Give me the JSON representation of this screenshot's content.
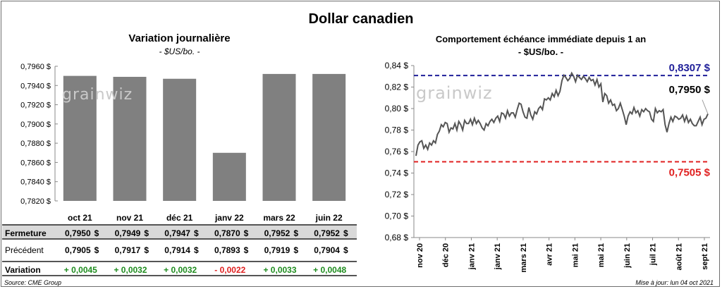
{
  "header": {
    "title": "Dollar canadien"
  },
  "chart_data": [
    {
      "type": "bar",
      "title": "Variation  journalière",
      "subtitle": "- $US/bo. -",
      "categories": [
        "oct 21",
        "nov 21",
        "déc 21",
        "janv 22",
        "mars 22",
        "juin 22"
      ],
      "values": [
        0.795,
        0.7949,
        0.7947,
        0.787,
        0.7952,
        0.7952
      ],
      "ylim": [
        0.782,
        0.796
      ],
      "yticks": [
        "0,7820 $",
        "0,7840 $",
        "0,7860 $",
        "0,7880 $",
        "0,7900 $",
        "0,7920 $",
        "0,7940 $",
        "0,7960 $"
      ],
      "bar_color": "#808080"
    },
    {
      "type": "line",
      "title": "Comportement échéance immédiate depuis 1 an",
      "subtitle": "- $US/bo. -",
      "ylim": [
        0.68,
        0.84
      ],
      "yticks": [
        "0,68 $",
        "0,70 $",
        "0,72 $",
        "0,74 $",
        "0,76 $",
        "0,78 $",
        "0,80 $",
        "0,82 $",
        "0,84 $"
      ],
      "xticks": [
        "nov 20",
        "déc 20",
        "janv 21",
        "janv 21",
        "mars 21",
        "avr 21",
        "mai 21",
        "mai 21",
        "juin 21",
        "juil 21",
        "août 21",
        "sept 21"
      ],
      "series": [
        {
          "color": "#555555",
          "values": [
            0.756,
            0.766,
            0.769,
            0.77,
            0.763,
            0.766,
            0.762,
            0.768,
            0.766,
            0.77,
            0.768,
            0.776,
            0.779,
            0.785,
            0.783,
            0.787,
            0.786,
            0.778,
            0.782,
            0.781,
            0.786,
            0.78,
            0.788,
            0.785,
            0.78,
            0.789,
            0.786,
            0.786,
            0.79,
            0.785,
            0.791,
            0.786,
            0.789,
            0.786,
            0.782,
            0.78,
            0.786,
            0.784,
            0.788,
            0.79,
            0.787,
            0.791,
            0.793,
            0.788,
            0.796,
            0.795,
            0.791,
            0.798,
            0.793,
            0.796,
            0.796,
            0.792,
            0.799,
            0.805,
            0.804,
            0.797,
            0.792,
            0.791,
            0.801,
            0.794,
            0.79,
            0.797,
            0.795,
            0.8,
            0.802,
            0.799,
            0.809,
            0.808,
            0.81,
            0.808,
            0.814,
            0.811,
            0.817,
            0.812,
            0.816,
            0.826,
            0.831,
            0.829,
            0.826,
            0.828,
            0.833,
            0.83,
            0.825,
            0.831,
            0.829,
            0.827,
            0.83,
            0.828,
            0.825,
            0.829,
            0.826,
            0.827,
            0.822,
            0.827,
            0.82,
            0.823,
            0.806,
            0.814,
            0.812,
            0.805,
            0.808,
            0.803,
            0.804,
            0.798,
            0.8,
            0.805,
            0.799,
            0.793,
            0.785,
            0.793,
            0.797,
            0.795,
            0.801,
            0.796,
            0.798,
            0.793,
            0.799,
            0.797,
            0.8,
            0.798,
            0.797,
            0.79,
            0.788,
            0.8,
            0.796,
            0.798,
            0.797,
            0.799,
            0.785,
            0.778,
            0.786,
            0.792,
            0.788,
            0.793,
            0.792,
            0.79,
            0.791,
            0.794,
            0.788,
            0.793,
            0.787,
            0.79,
            0.786,
            0.784,
            0.784,
            0.788,
            0.792,
            0.785,
            0.79,
            0.791,
            0.795
          ]
        }
      ],
      "ref_lines": [
        {
          "value": 0.8307,
          "label": "0,8307 $",
          "color": "#1f1f99"
        },
        {
          "value": 0.7505,
          "label": "0,7505 $",
          "color": "#e02020"
        }
      ],
      "last_label": "0,7950 $"
    }
  ],
  "table": {
    "rows": [
      {
        "label": "Fermeture",
        "values": [
          "0,7950",
          "0,7949",
          "0,7947",
          "0,7870",
          "0,7952",
          "0,7952"
        ],
        "dollar": "$"
      },
      {
        "label": "Précédent",
        "values": [
          "0,7905",
          "0,7917",
          "0,7914",
          "0,7893",
          "0,7919",
          "0,7904"
        ],
        "dollar": "$"
      },
      {
        "label": "Variation",
        "values": [
          "+ 0,0045",
          "+ 0,0032",
          "+ 0,0032",
          "- 0,0022",
          "+ 0,0033",
          "+ 0,0048"
        ],
        "signs": [
          "pos",
          "pos",
          "pos",
          "neg",
          "pos",
          "pos"
        ]
      }
    ],
    "pos_color": "#1e8c1e",
    "neg_color": "#e02020"
  },
  "watermark": {
    "text": "grainwiz"
  },
  "footer": {
    "source": "Source: CME Group",
    "updated": "Mise à jour: lun 04 oct 2021"
  }
}
